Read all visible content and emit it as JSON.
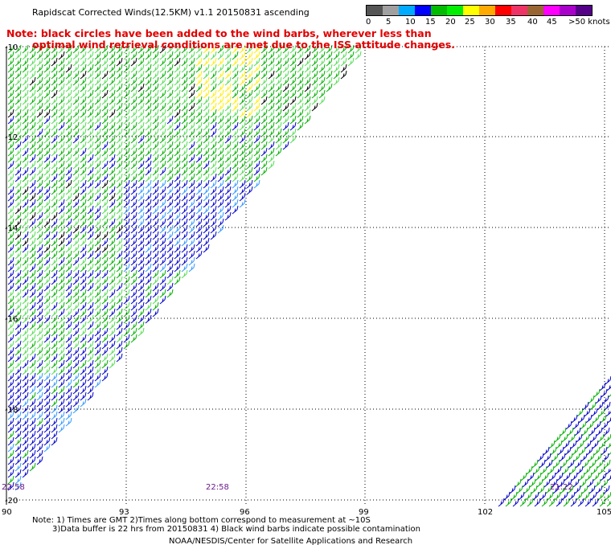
{
  "header": {
    "title": "Rapidscat Corrected Winds(12.5KM) v1.1 20150831 ascending",
    "note_line1": "Note: black circles have been added to the wind barbs, wherever less than",
    "note_line2": "optimal wind retrieval conditions are met due to the ISS attitude changes."
  },
  "legend": {
    "colors": [
      "#555555",
      "#a0a0a0",
      "#00aaff",
      "#0000ff",
      "#00bb00",
      "#00ee00",
      "#ffff00",
      "#ffaa00",
      "#ff0000",
      "#ee3366",
      "#996633",
      "#ff00ff",
      "#aa00cc",
      "#550088"
    ],
    "labels": [
      "0",
      "5",
      "10",
      "15",
      "20",
      "25",
      "30",
      "35",
      "40",
      "45",
      ">50 knots"
    ]
  },
  "map": {
    "lon_labels": [
      "90",
      "93",
      "96",
      "99",
      "102",
      "105"
    ],
    "lat_labels": [
      "-10",
      "-12",
      "-14",
      "-16",
      "-18",
      "-20"
    ],
    "time_labels": [
      "22:58",
      "22:58",
      "21:22"
    ],
    "barb_colors": {
      "light_blue": "#3399ff",
      "blue": "#0000cc",
      "green": "#00b000",
      "light_green": "#55dd55",
      "yellow": "#ffee00",
      "black": "#000000"
    }
  },
  "footer": {
    "line1": "Note: 1) Times are GMT 2)Times along bottom correspond to measurement at ~10S",
    "line2": "3)Data buffer is 22 hrs from 20150831 4) Black wind barbs indicate possible contamination",
    "line3": "NOAA/NESDIS/Center for Satellite Applications and Research"
  }
}
